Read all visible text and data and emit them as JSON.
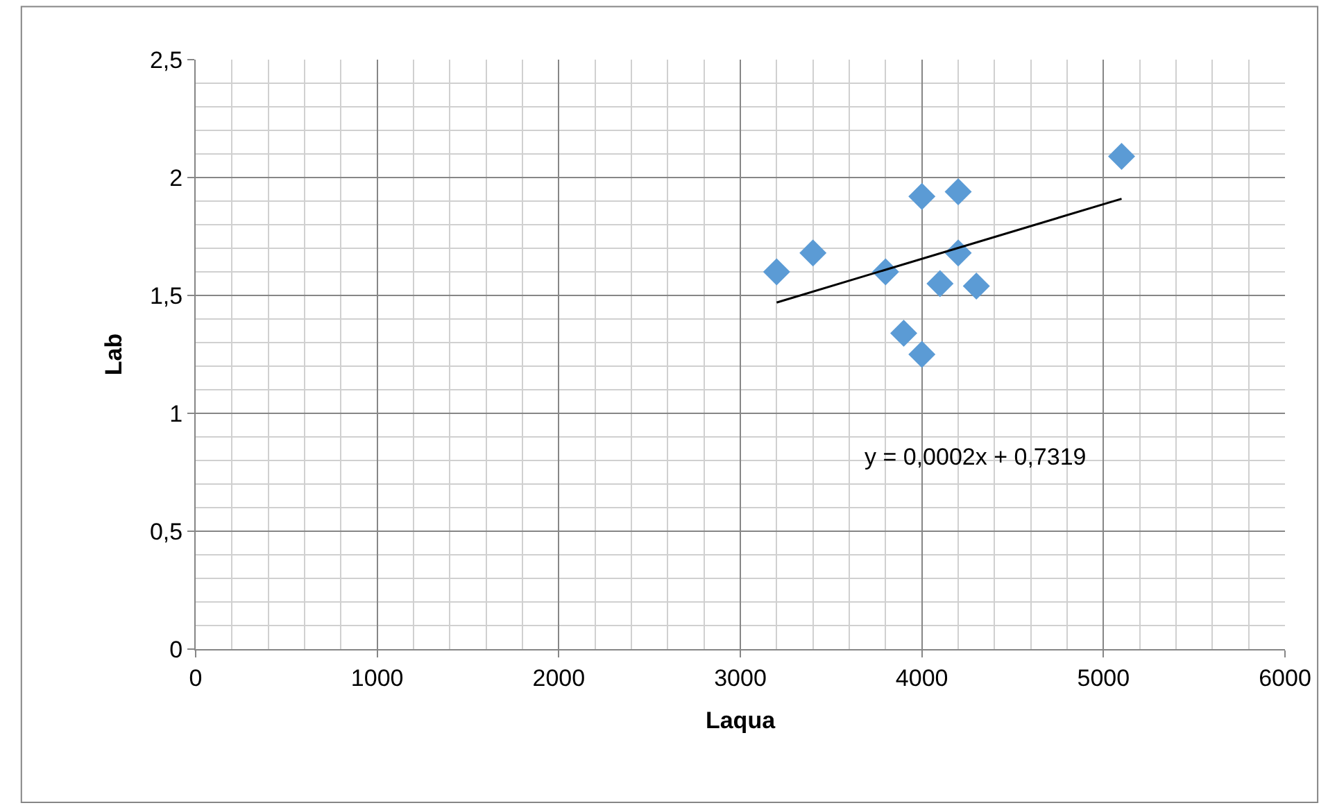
{
  "chart_data": {
    "type": "scatter",
    "xlabel": "Laqua",
    "ylabel": "Lab",
    "marker": "diamond",
    "grid": true,
    "xlim": [
      0,
      6000
    ],
    "xticks": [
      0,
      1000,
      2000,
      3000,
      4000,
      5000,
      6000
    ],
    "ylim": [
      0,
      2.5
    ],
    "yticks": [
      0,
      {
        "value": 0.5,
        "label": "0,5"
      },
      1,
      {
        "value": 1.5,
        "label": "1,5"
      },
      2,
      {
        "value": 2.5,
        "label": "2,5"
      }
    ],
    "annotations": [
      "y = 0,0002x + 0,7319"
    ],
    "series": [
      {
        "color": "#5b9bd5",
        "x": [
          3200,
          3400,
          3800,
          3900,
          4000,
          4000,
          4100,
          4200,
          4200,
          4300,
          5100
        ],
        "values": [
          1.6,
          1.68,
          1.6,
          1.34,
          1.92,
          1.25,
          1.55,
          1.94,
          1.68,
          1.54,
          2.09
        ]
      },
      {
        "type": "line",
        "color": "#000000",
        "x": [
          3200,
          5100
        ],
        "values": [
          1.47,
          1.91
        ],
        "marker": "none",
        "line_style": "solid"
      }
    ]
  }
}
